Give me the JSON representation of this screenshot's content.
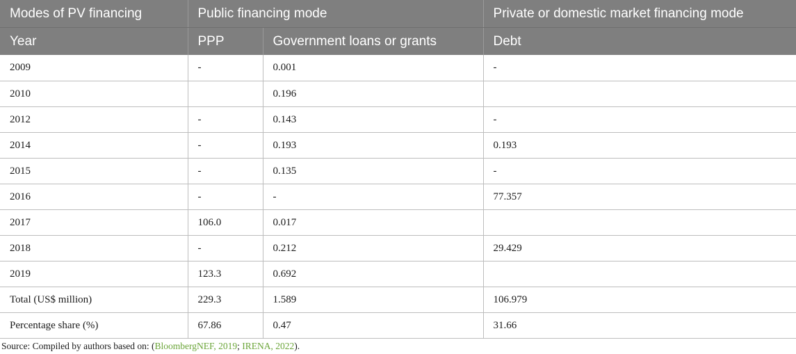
{
  "table": {
    "header_row1": [
      "Modes of PV financing",
      "Public financing mode",
      "Private or domestic market financing mode"
    ],
    "header_row2": [
      "Year",
      "PPP",
      "Government loans or grants",
      "Debt"
    ],
    "rows": [
      [
        "2009",
        "-",
        "0.001",
        "-"
      ],
      [
        "2010",
        "",
        "0.196",
        ""
      ],
      [
        "2012",
        "-",
        "0.143",
        "-"
      ],
      [
        "2014",
        "-",
        "0.193",
        "0.193"
      ],
      [
        "2015",
        "-",
        "0.135",
        "-"
      ],
      [
        "2016",
        "-",
        "-",
        "77.357"
      ],
      [
        "2017",
        "106.0",
        "0.017",
        ""
      ],
      [
        "2018",
        "-",
        "0.212",
        "29.429"
      ],
      [
        "2019",
        "123.3",
        "0.692",
        ""
      ],
      [
        "Total (US$ million)",
        "229.3",
        "1.589",
        "106.979"
      ],
      [
        "Percentage share (%)",
        "67.86",
        "0.47",
        "31.66"
      ]
    ]
  },
  "source": {
    "prefix": "Source: Compiled by authors based on: (",
    "ref1": "BloombergNEF, 2019",
    "sep": "; ",
    "ref2": "IRENA, 2022",
    "suffix": ")."
  },
  "colors": {
    "header_bg": "#7f7f7f",
    "link": "#6ba539"
  }
}
